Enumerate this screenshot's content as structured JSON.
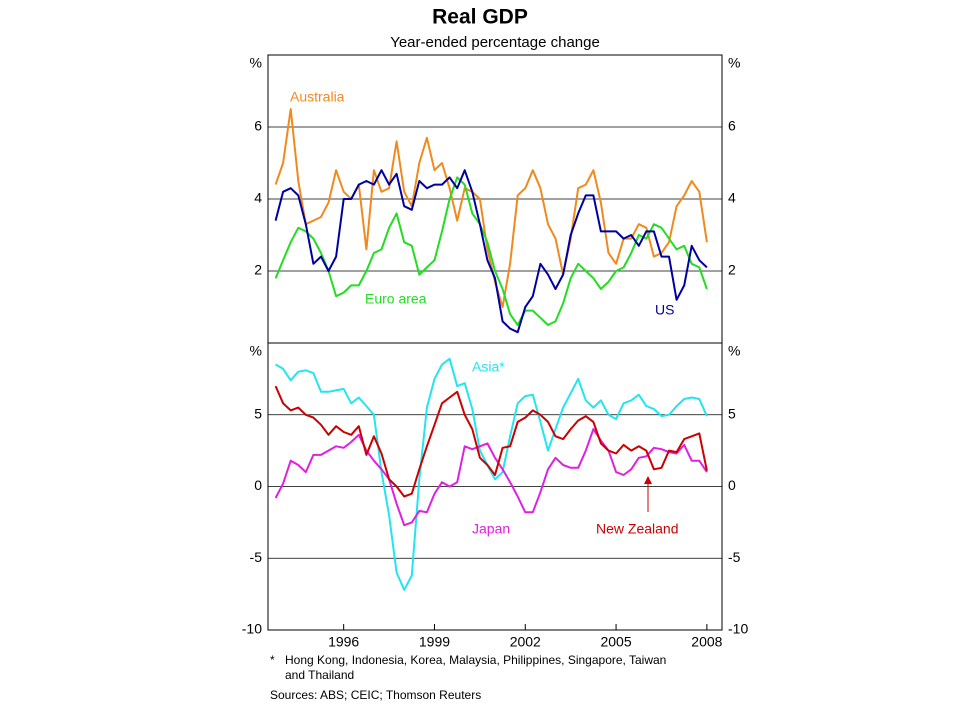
{
  "title": "Real GDP",
  "subtitle": "Year-ended percentage change",
  "notes": [
    "*",
    "Hong Kong, Indonesia, Korea, Malaysia, Philippines, Singapore, Taiwan",
    "and Thailand"
  ],
  "sources": "Sources: ABS; CEIC; Thomson Reuters",
  "chart_data": [
    {
      "type": "line",
      "y_unit": "%",
      "xlim": [
        1993.5,
        2008.5
      ],
      "ylim": [
        0,
        8
      ],
      "yticks": [
        2,
        4,
        6
      ],
      "grid": true,
      "x": [
        1993.75,
        1994,
        1994.25,
        1994.5,
        1994.75,
        1995,
        1995.25,
        1995.5,
        1995.75,
        1996,
        1996.25,
        1996.5,
        1996.75,
        1997,
        1997.25,
        1997.5,
        1997.75,
        1998,
        1998.25,
        1998.5,
        1998.75,
        1999,
        1999.25,
        1999.5,
        1999.75,
        2000,
        2000.25,
        2000.5,
        2000.75,
        2001,
        2001.25,
        2001.5,
        2001.75,
        2002,
        2002.25,
        2002.5,
        2002.75,
        2003,
        2003.25,
        2003.5,
        2003.75,
        2004,
        2004.25,
        2004.5,
        2004.75,
        2005,
        2005.25,
        2005.5,
        2005.75,
        2006,
        2006.25,
        2006.5,
        2006.75,
        2007,
        2007.25,
        2007.5,
        2007.75,
        2008
      ],
      "series": [
        {
          "name": "Australia",
          "color": "#f08a1c",
          "values": [
            4.4,
            5.0,
            6.5,
            4.5,
            3.3,
            3.4,
            3.5,
            3.9,
            4.8,
            4.2,
            4.0,
            4.4,
            2.6,
            4.8,
            4.2,
            4.3,
            5.6,
            4.2,
            3.8,
            5.0,
            5.7,
            4.8,
            5.0,
            4.3,
            3.4,
            4.3,
            4.2,
            4.0,
            2.6,
            1.7,
            1.0,
            2.2,
            4.1,
            4.3,
            4.8,
            4.3,
            3.3,
            2.9,
            1.9,
            2.9,
            4.3,
            4.4,
            4.8,
            3.9,
            2.5,
            2.2,
            2.9,
            2.9,
            3.3,
            3.2,
            2.4,
            2.5,
            2.8,
            3.8,
            4.1,
            4.5,
            4.2,
            2.8
          ]
        },
        {
          "name": "Euro area",
          "color": "#22dd22",
          "values": [
            1.8,
            2.3,
            2.8,
            3.2,
            3.1,
            2.9,
            2.5,
            2.0,
            1.3,
            1.4,
            1.6,
            1.6,
            2.0,
            2.5,
            2.6,
            3.2,
            3.6,
            2.8,
            2.7,
            1.9,
            2.1,
            2.3,
            3.1,
            4.0,
            4.6,
            4.4,
            3.6,
            3.3,
            2.8,
            2.0,
            1.5,
            0.8,
            0.5,
            0.9,
            0.9,
            0.7,
            0.5,
            0.6,
            1.1,
            1.8,
            2.2,
            2.0,
            1.8,
            1.5,
            1.7,
            2.0,
            2.1,
            2.5,
            3.0,
            2.9,
            3.3,
            3.2,
            2.9,
            2.6,
            2.7,
            2.2,
            2.1,
            1.5
          ]
        },
        {
          "name": "US",
          "color": "#0000a0",
          "values": [
            3.4,
            4.2,
            4.3,
            4.1,
            3.3,
            2.2,
            2.4,
            2.0,
            2.4,
            4.0,
            4.0,
            4.4,
            4.5,
            4.4,
            4.8,
            4.4,
            4.7,
            3.8,
            3.7,
            4.5,
            4.3,
            4.4,
            4.4,
            4.6,
            4.3,
            4.8,
            4.2,
            3.3,
            2.3,
            1.8,
            0.6,
            0.4,
            0.3,
            1.0,
            1.3,
            2.2,
            1.9,
            1.5,
            1.9,
            3.0,
            3.6,
            4.1,
            4.1,
            3.1,
            3.1,
            3.1,
            2.9,
            3.0,
            2.7,
            3.1,
            3.1,
            2.4,
            2.4,
            1.2,
            1.6,
            2.7,
            2.3,
            2.1
          ]
        }
      ]
    },
    {
      "type": "line",
      "y_unit": "%",
      "xlim": [
        1993.5,
        2008.5
      ],
      "ylim": [
        -10,
        10
      ],
      "yticks": [
        -10,
        -5,
        0,
        5
      ],
      "grid": true,
      "xticks": [
        1996,
        1999,
        2002,
        2005,
        2008
      ],
      "x": [
        1993.75,
        1994,
        1994.25,
        1994.5,
        1994.75,
        1995,
        1995.25,
        1995.5,
        1995.75,
        1996,
        1996.25,
        1996.5,
        1996.75,
        1997,
        1997.25,
        1997.5,
        1997.75,
        1998,
        1998.25,
        1998.5,
        1998.75,
        1999,
        1999.25,
        1999.5,
        1999.75,
        2000,
        2000.25,
        2000.5,
        2000.75,
        2001,
        2001.25,
        2001.5,
        2001.75,
        2002,
        2002.25,
        2002.5,
        2002.75,
        2003,
        2003.25,
        2003.5,
        2003.75,
        2004,
        2004.25,
        2004.5,
        2004.75,
        2005,
        2005.25,
        2005.5,
        2005.75,
        2006,
        2006.25,
        2006.5,
        2006.75,
        2007,
        2007.25,
        2007.5,
        2007.75,
        2008
      ],
      "series": [
        {
          "name": "Asia*",
          "color": "#22e5f0",
          "values": [
            8.5,
            8.2,
            7.4,
            8.0,
            8.1,
            7.9,
            6.6,
            6.6,
            6.7,
            6.8,
            5.8,
            6.2,
            5.6,
            5.0,
            1.0,
            -2.0,
            -6.0,
            -7.2,
            -6.2,
            0.5,
            5.5,
            7.5,
            8.5,
            8.9,
            7.0,
            7.2,
            5.4,
            2.5,
            1.5,
            0.5,
            1.0,
            3.5,
            5.8,
            6.3,
            6.4,
            4.5,
            2.5,
            4.0,
            5.5,
            6.5,
            7.5,
            6.0,
            5.5,
            6.0,
            5.0,
            4.7,
            5.8,
            6.0,
            6.4,
            5.6,
            5.4,
            4.9,
            5.0,
            5.6,
            6.1,
            6.2,
            6.1,
            4.9
          ]
        },
        {
          "name": "Japan",
          "color": "#e020e0",
          "values": [
            -0.8,
            0.2,
            1.8,
            1.5,
            1.0,
            2.2,
            2.2,
            2.5,
            2.8,
            2.7,
            3.1,
            3.6,
            2.5,
            1.8,
            1.2,
            0.5,
            -1.2,
            -2.7,
            -2.5,
            -1.7,
            -1.8,
            -0.5,
            0.3,
            0.0,
            0.3,
            2.8,
            2.6,
            2.8,
            3.0,
            2.0,
            1.2,
            0.3,
            -0.7,
            -1.8,
            -1.8,
            -0.4,
            1.2,
            2.0,
            1.5,
            1.3,
            1.3,
            2.5,
            4.0,
            3.2,
            2.5,
            1.0,
            0.8,
            1.2,
            2.0,
            2.1,
            2.7,
            2.6,
            2.4,
            2.3,
            2.9,
            1.8,
            1.8,
            1.0
          ]
        },
        {
          "name": "New Zealand",
          "color": "#cc0000",
          "values": [
            7.0,
            5.8,
            5.3,
            5.5,
            5.0,
            4.8,
            4.3,
            3.6,
            4.2,
            3.8,
            3.6,
            4.2,
            2.2,
            3.5,
            2.3,
            0.5,
            0.0,
            -0.7,
            -0.5,
            1.2,
            2.8,
            4.3,
            5.8,
            6.2,
            6.6,
            5.0,
            4.0,
            2.0,
            1.5,
            0.8,
            2.7,
            2.8,
            4.5,
            4.8,
            5.3,
            5.0,
            4.5,
            3.5,
            3.3,
            4.0,
            4.6,
            4.9,
            4.5,
            3.0,
            2.5,
            2.3,
            2.9,
            2.5,
            2.8,
            2.5,
            1.2,
            1.3,
            2.5,
            2.4,
            3.3,
            3.5,
            3.7,
            1.1
          ]
        }
      ]
    }
  ]
}
